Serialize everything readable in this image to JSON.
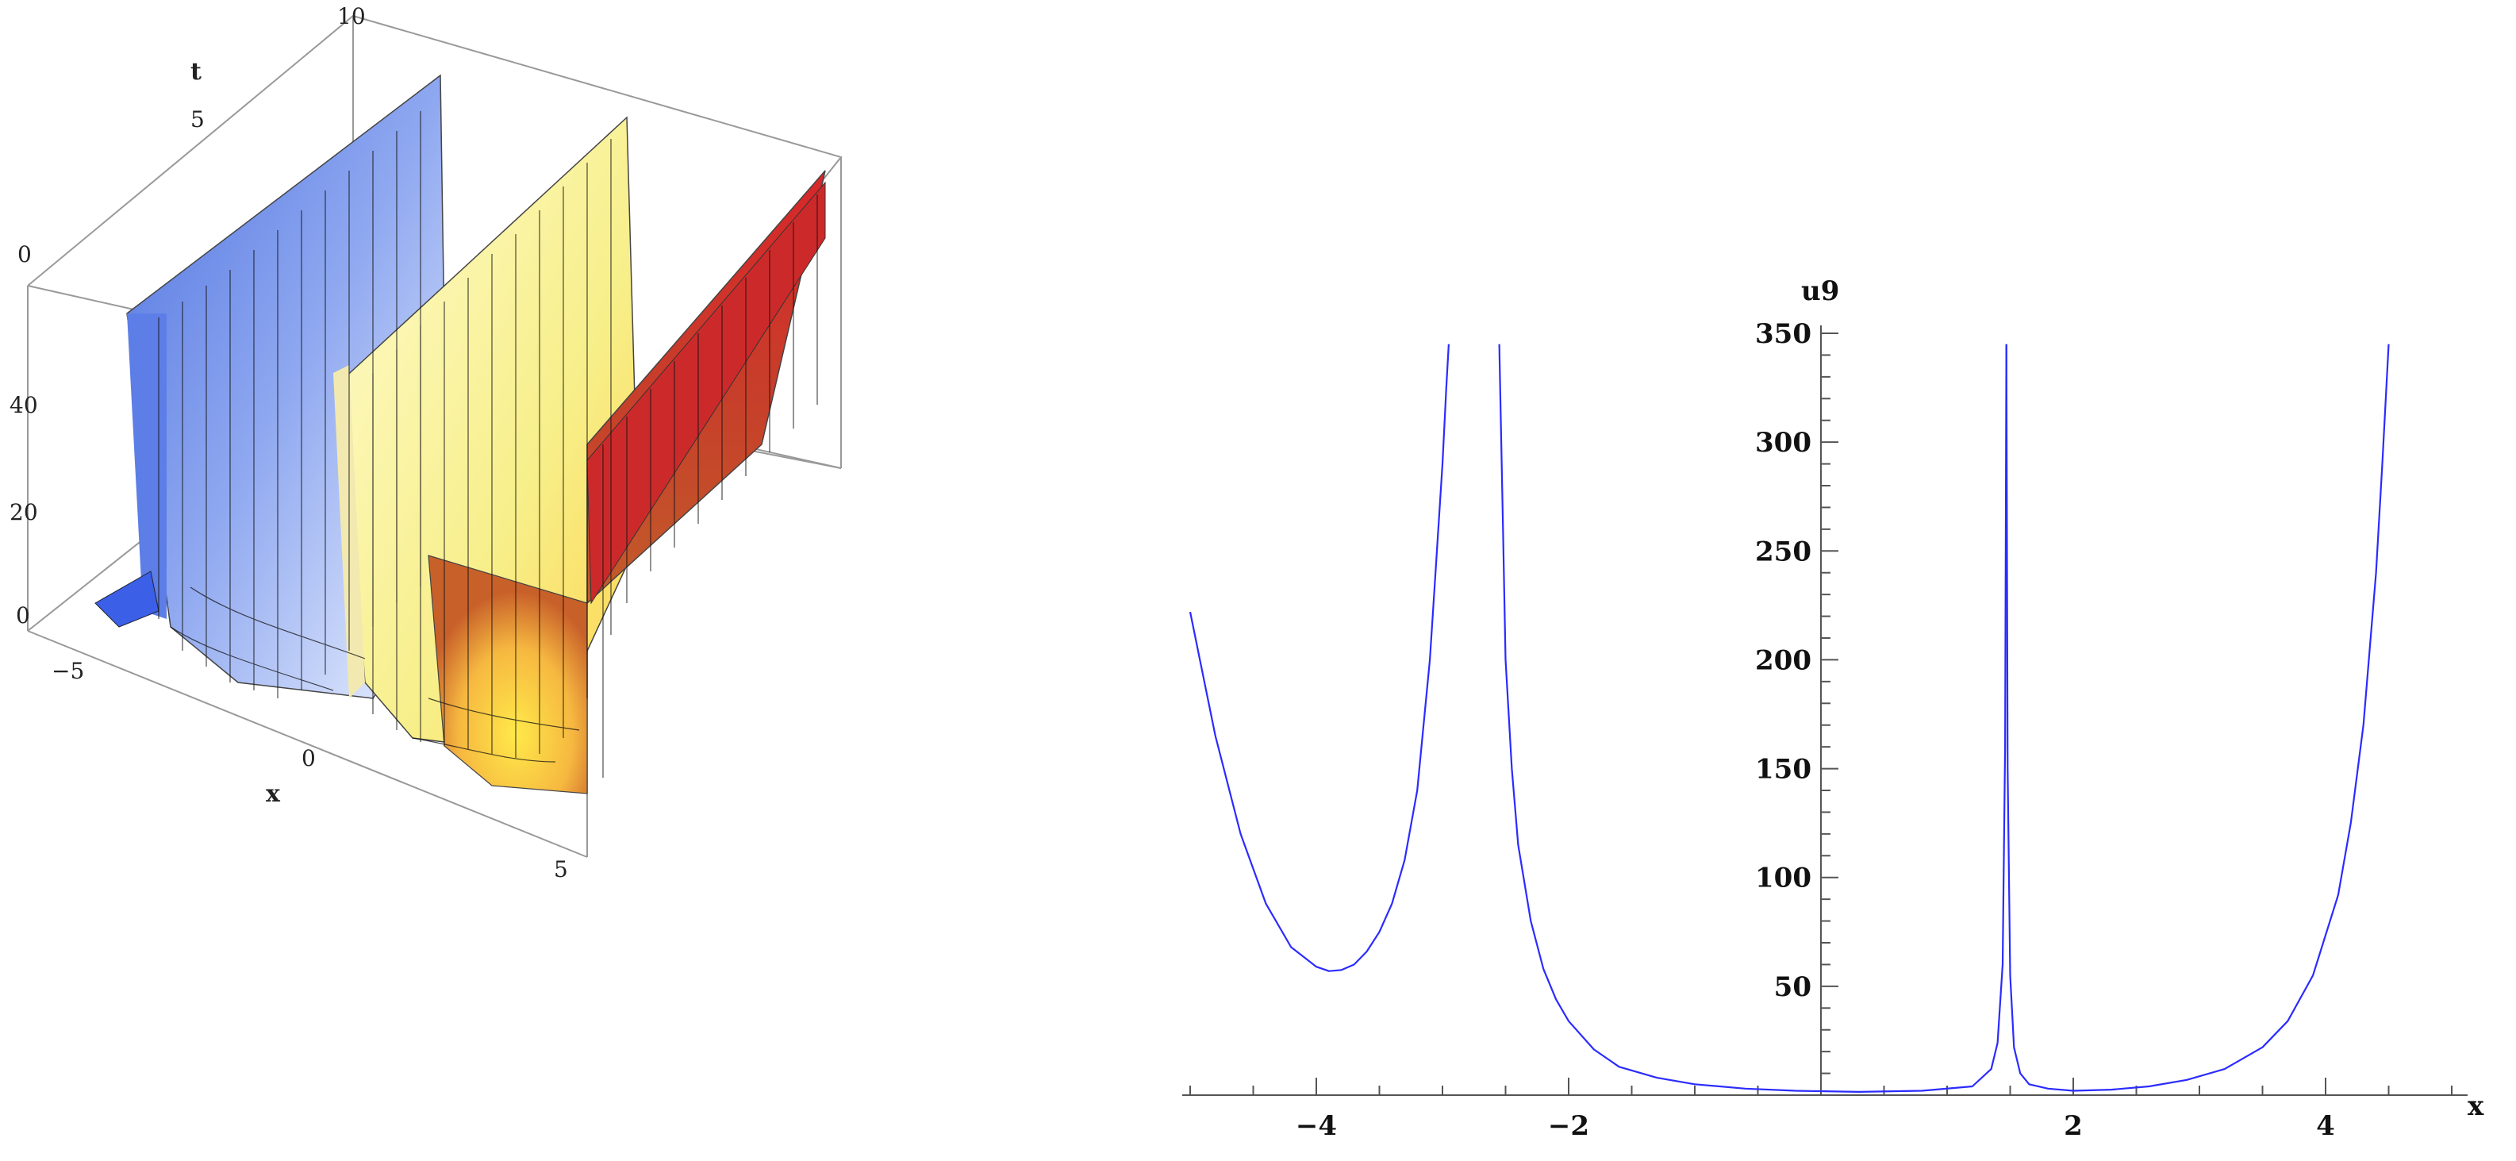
{
  "chart_data": [
    {
      "type": "surface3d",
      "axes": {
        "x": {
          "label": "x",
          "ticks": [
            "−5",
            "0",
            "5"
          ]
        },
        "t": {
          "label": "t",
          "ticks": [
            "0",
            "5",
            "10"
          ]
        },
        "z": {
          "ticks": [
            "0",
            "20",
            "40"
          ]
        }
      },
      "colors": {
        "left_peak": "#6f8fe8",
        "middle_peak": "#f5f19a",
        "right_peak": "#cc2a2a",
        "floor": "#ffe24a"
      }
    },
    {
      "type": "line",
      "xlabel": "x",
      "ylabel": "u9",
      "xlim": [
        -5,
        5
      ],
      "ylim": [
        0,
        350
      ],
      "x_ticks": [
        {
          "value": -4,
          "label": "−4"
        },
        {
          "value": -2,
          "label": "−2"
        },
        {
          "value": 2,
          "label": "2"
        },
        {
          "value": 4,
          "label": "4"
        }
      ],
      "y_ticks": [
        {
          "value": 50,
          "label": "50"
        },
        {
          "value": 100,
          "label": "100"
        },
        {
          "value": 150,
          "label": "150"
        },
        {
          "value": 200,
          "label": "200"
        },
        {
          "value": 250,
          "label": "250"
        },
        {
          "value": 300,
          "label": "300"
        },
        {
          "value": 350,
          "label": "350"
        }
      ],
      "line_color": "#2b2bff",
      "segments": [
        {
          "x": [
            -5.0,
            -4.8,
            -4.6,
            -4.4,
            -4.2,
            -4.0,
            -3.9,
            -3.8,
            -3.7,
            -3.6,
            -3.5,
            -3.4,
            -3.3,
            -3.2,
            -3.1,
            -3.05,
            -3.0,
            -2.97,
            -2.95
          ],
          "y": [
            222,
            165,
            120,
            88,
            68,
            59,
            57,
            57.5,
            60,
            66,
            75,
            88,
            108,
            140,
            200,
            245,
            290,
            325,
            345
          ]
        },
        {
          "x": [
            -2.55,
            -2.52,
            -2.5,
            -2.45,
            -2.4,
            -2.3,
            -2.2,
            -2.1,
            -2.0,
            -1.8,
            -1.6,
            -1.3,
            -1.0,
            -0.6,
            -0.2,
            0.3,
            0.8,
            1.2,
            1.35,
            1.4,
            1.44,
            1.46,
            1.47
          ],
          "y": [
            345,
            260,
            200,
            150,
            115,
            80,
            58,
            44,
            34,
            21,
            13,
            8,
            5,
            3,
            2,
            1.5,
            2,
            4,
            12,
            24,
            60,
            160,
            345
          ]
        },
        {
          "x": [
            1.47,
            1.48,
            1.5,
            1.53,
            1.58,
            1.65,
            1.8,
            2.0,
            2.3,
            2.6,
            2.9,
            3.2,
            3.5,
            3.7,
            3.9,
            4.1,
            4.2,
            4.3,
            4.4,
            4.45,
            4.5
          ],
          "y": [
            345,
            150,
            55,
            22,
            10,
            5,
            3,
            2,
            2.5,
            4,
            7,
            12,
            22,
            34,
            55,
            92,
            125,
            170,
            240,
            290,
            345
          ]
        }
      ]
    }
  ]
}
